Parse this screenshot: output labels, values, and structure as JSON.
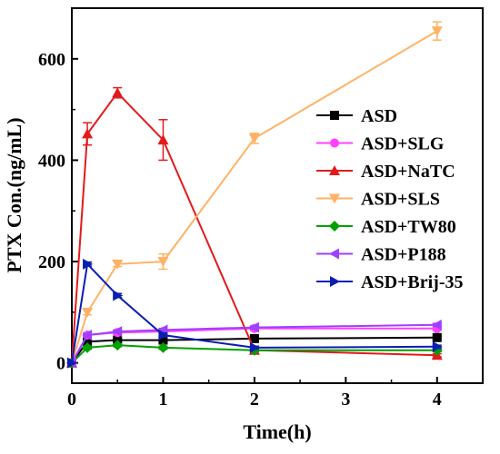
{
  "chart_data": {
    "type": "line",
    "xlabel": "Time(h)",
    "ylabel": "PTX Con.(ng/mL)",
    "xlim": [
      0,
      4.5
    ],
    "ylim": [
      -40,
      700
    ],
    "xticks": [
      0,
      1,
      2,
      3,
      4
    ],
    "yticks": [
      0,
      200,
      400,
      600
    ],
    "x": [
      0,
      0.17,
      0.5,
      1,
      2,
      4
    ],
    "legend_position": "right",
    "grid": false,
    "series": [
      {
        "name": "ASD",
        "color": "#000000",
        "marker": "square",
        "values": [
          0,
          42,
          45,
          45,
          48,
          50
        ],
        "errors": [
          0,
          3,
          3,
          3,
          3,
          3
        ]
      },
      {
        "name": "ASD+SLG",
        "color": "#ff40ff",
        "marker": "circle",
        "values": [
          0,
          55,
          60,
          62,
          68,
          68
        ],
        "errors": [
          0,
          4,
          4,
          4,
          4,
          4
        ]
      },
      {
        "name": "ASD+NaTC",
        "color": "#e31a1c",
        "marker": "triangle-up",
        "values": [
          0,
          452,
          533,
          440,
          25,
          15
        ],
        "errors": [
          0,
          22,
          10,
          40,
          3,
          3
        ]
      },
      {
        "name": "ASD+SLS",
        "color": "#ffb266",
        "marker": "triangle-down",
        "values": [
          0,
          100,
          195,
          200,
          443,
          655
        ],
        "errors": [
          0,
          5,
          5,
          15,
          10,
          18
        ]
      },
      {
        "name": "ASD+TW80",
        "color": "#00a000",
        "marker": "diamond",
        "values": [
          0,
          30,
          35,
          30,
          25,
          25
        ],
        "errors": [
          0,
          3,
          3,
          3,
          3,
          3
        ]
      },
      {
        "name": "ASD+P188",
        "color": "#a040ff",
        "marker": "triangle-left",
        "values": [
          0,
          55,
          62,
          65,
          70,
          75
        ],
        "errors": [
          0,
          3,
          3,
          3,
          3,
          3
        ]
      },
      {
        "name": "ASD+Brij-35",
        "color": "#0a1fb0",
        "marker": "triangle-right",
        "values": [
          0,
          195,
          133,
          55,
          30,
          32
        ],
        "errors": [
          0,
          4,
          4,
          4,
          3,
          3
        ]
      }
    ]
  }
}
